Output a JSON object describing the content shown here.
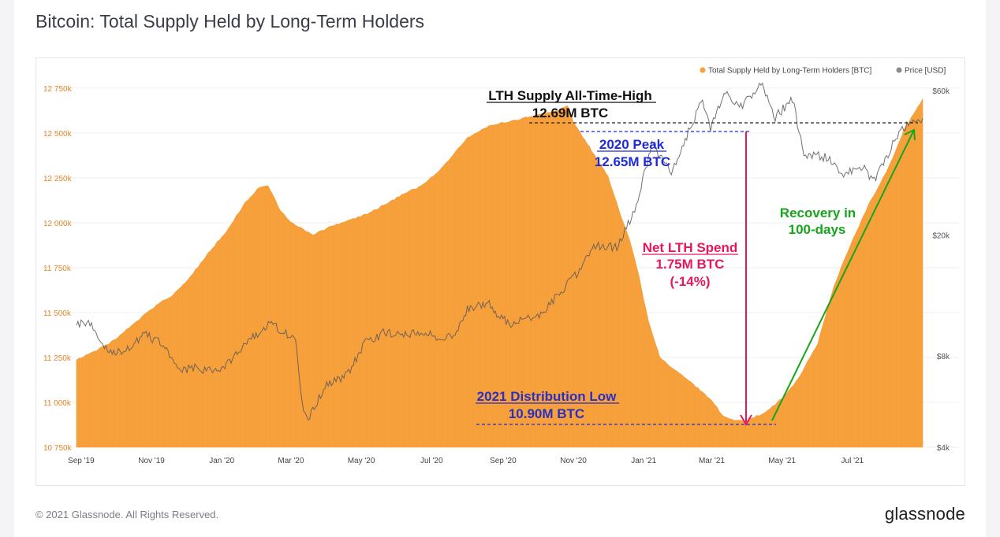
{
  "page": {
    "title": "Bitcoin: Total Supply Held by Long-Term Holders",
    "copyright": "© 2021 Glassnode. All Rights Reserved.",
    "brand": "glassnode",
    "watermark": "glassnode"
  },
  "colors": {
    "supply": "#f7a13d",
    "price": "#7f7f7f",
    "ath_line": "#222222",
    "peak_text": "#1f2bd6",
    "low_text": "#2a2fc4",
    "spend": "#e8175d",
    "recovery": "#16a51b",
    "left_tick": "#e08a2a",
    "right_tick": "#555555"
  },
  "chart_data": {
    "type": "area",
    "title": "Bitcoin: Total Supply Held by Long-Term Holders",
    "x_axis": {
      "type": "date",
      "range": [
        "2019-08-28",
        "2021-08-31"
      ],
      "tick_labels": [
        "Sep '19",
        "Nov '19",
        "Jan '20",
        "Mar '20",
        "May '20",
        "Jul '20",
        "Sep '20",
        "Nov '20",
        "Jan '21",
        "Mar '21",
        "May '21",
        "Jul '21"
      ],
      "tick_dates": [
        "2019-09-01",
        "2019-11-01",
        "2020-01-01",
        "2020-03-01",
        "2020-05-01",
        "2020-07-01",
        "2020-09-01",
        "2020-11-01",
        "2021-01-01",
        "2021-03-01",
        "2021-05-01",
        "2021-07-01"
      ]
    },
    "y_left": {
      "unit": "BTC (thousands)",
      "range": [
        10750,
        12850
      ],
      "tick_values": [
        10750,
        11000,
        11250,
        11500,
        11750,
        12000,
        12250,
        12500,
        12750
      ],
      "tick_labels": [
        "10 750k",
        "11 000k",
        "11 250k",
        "11 500k",
        "11 750k",
        "12 000k",
        "12 250k",
        "12 500k",
        "12 750k"
      ]
    },
    "y_right": {
      "scale": "log",
      "unit": "USD",
      "range": [
        4000,
        70000
      ],
      "tick_values": [
        4000,
        8000,
        20000,
        60000
      ],
      "tick_labels": [
        "$4k",
        "$8k",
        "$20k",
        "$60k"
      ]
    },
    "legend_position": "top-right",
    "grid": "horizontal",
    "series": [
      {
        "name": "Total Supply Held by Long-Term Holders [BTC]",
        "axis": "left",
        "points": [
          [
            "2019-08-28",
            11240
          ],
          [
            "2019-09-05",
            11260
          ],
          [
            "2019-09-15",
            11290
          ],
          [
            "2019-10-01",
            11350
          ],
          [
            "2019-10-15",
            11430
          ],
          [
            "2019-11-01",
            11520
          ],
          [
            "2019-11-20",
            11600
          ],
          [
            "2019-12-05",
            11700
          ],
          [
            "2019-12-20",
            11830
          ],
          [
            "2020-01-05",
            11950
          ],
          [
            "2020-01-20",
            12100
          ],
          [
            "2020-02-01",
            12190
          ],
          [
            "2020-02-10",
            12210
          ],
          [
            "2020-02-20",
            12080
          ],
          [
            "2020-03-01",
            12000
          ],
          [
            "2020-03-12",
            11960
          ],
          [
            "2020-03-20",
            11930
          ],
          [
            "2020-04-01",
            11970
          ],
          [
            "2020-04-20",
            12010
          ],
          [
            "2020-05-10",
            12060
          ],
          [
            "2020-06-01",
            12140
          ],
          [
            "2020-06-20",
            12200
          ],
          [
            "2020-07-05",
            12270
          ],
          [
            "2020-07-20",
            12380
          ],
          [
            "2020-08-01",
            12470
          ],
          [
            "2020-08-20",
            12540
          ],
          [
            "2020-09-10",
            12570
          ],
          [
            "2020-10-01",
            12600
          ],
          [
            "2020-10-20",
            12630
          ],
          [
            "2020-10-27",
            12650
          ],
          [
            "2020-11-01",
            12560
          ],
          [
            "2020-11-15",
            12420
          ],
          [
            "2020-12-01",
            12260
          ],
          [
            "2020-12-10",
            12080
          ],
          [
            "2020-12-20",
            11900
          ],
          [
            "2020-12-28",
            11700
          ],
          [
            "2021-01-05",
            11450
          ],
          [
            "2021-01-15",
            11250
          ],
          [
            "2021-02-01",
            11160
          ],
          [
            "2021-02-15",
            11090
          ],
          [
            "2021-03-01",
            11010
          ],
          [
            "2021-03-10",
            10930
          ],
          [
            "2021-03-20",
            10900
          ],
          [
            "2021-04-01",
            10900
          ],
          [
            "2021-04-15",
            10940
          ],
          [
            "2021-05-01",
            11020
          ],
          [
            "2021-05-15",
            11130
          ],
          [
            "2021-06-01",
            11330
          ],
          [
            "2021-06-15",
            11650
          ],
          [
            "2021-07-01",
            11900
          ],
          [
            "2021-07-15",
            12100
          ],
          [
            "2021-08-01",
            12300
          ],
          [
            "2021-08-15",
            12520
          ],
          [
            "2021-08-31",
            12690
          ]
        ]
      },
      {
        "name": "Price [USD]",
        "axis": "right",
        "points": [
          [
            "2019-08-28",
            10200
          ],
          [
            "2019-09-10",
            10300
          ],
          [
            "2019-09-24",
            8200
          ],
          [
            "2019-10-10",
            8400
          ],
          [
            "2019-10-26",
            9400
          ],
          [
            "2019-11-10",
            8800
          ],
          [
            "2019-11-25",
            7200
          ],
          [
            "2019-12-10",
            7300
          ],
          [
            "2019-12-20",
            7200
          ],
          [
            "2020-01-05",
            7400
          ],
          [
            "2020-01-20",
            8700
          ],
          [
            "2020-02-13",
            10300
          ],
          [
            "2020-03-05",
            9000
          ],
          [
            "2020-03-12",
            5200
          ],
          [
            "2020-03-16",
            5000
          ],
          [
            "2020-04-01",
            6400
          ],
          [
            "2020-04-20",
            7000
          ],
          [
            "2020-05-05",
            8900
          ],
          [
            "2020-05-20",
            9500
          ],
          [
            "2020-06-15",
            9500
          ],
          [
            "2020-07-20",
            9200
          ],
          [
            "2020-08-01",
            11500
          ],
          [
            "2020-08-20",
            11800
          ],
          [
            "2020-09-05",
            10200
          ],
          [
            "2020-10-01",
            10700
          ],
          [
            "2020-10-20",
            12800
          ],
          [
            "2020-11-05",
            15200
          ],
          [
            "2020-11-20",
            18500
          ],
          [
            "2020-12-10",
            18300
          ],
          [
            "2020-12-27",
            26000
          ],
          [
            "2021-01-08",
            40000
          ],
          [
            "2021-01-25",
            32000
          ],
          [
            "2021-02-10",
            45000
          ],
          [
            "2021-02-21",
            56000
          ],
          [
            "2021-02-28",
            45000
          ],
          [
            "2021-03-13",
            60000
          ],
          [
            "2021-03-25",
            52000
          ],
          [
            "2021-04-14",
            63500
          ],
          [
            "2021-04-25",
            49000
          ],
          [
            "2021-05-10",
            56000
          ],
          [
            "2021-05-20",
            37000
          ],
          [
            "2021-06-10",
            36000
          ],
          [
            "2021-06-22",
            32000
          ],
          [
            "2021-07-10",
            33500
          ],
          [
            "2021-07-20",
            30000
          ],
          [
            "2021-08-05",
            40000
          ],
          [
            "2021-08-20",
            48000
          ],
          [
            "2021-08-31",
            48500
          ]
        ]
      }
    ],
    "annotations": {
      "ath_line1": "LTH Supply All-Time-High",
      "ath_line2": "12.69M BTC",
      "peak_line1": "2020 Peak",
      "peak_line2": "12.65M BTC",
      "spend_line1": "Net LTH Spend",
      "spend_line2": "1.75M BTC",
      "spend_line3": "(-14%)",
      "low_line1": "2021 Distribution Low",
      "low_line2": "10.90M BTC",
      "recovery_line1": "Recovery in",
      "recovery_line2": "100-days"
    }
  }
}
